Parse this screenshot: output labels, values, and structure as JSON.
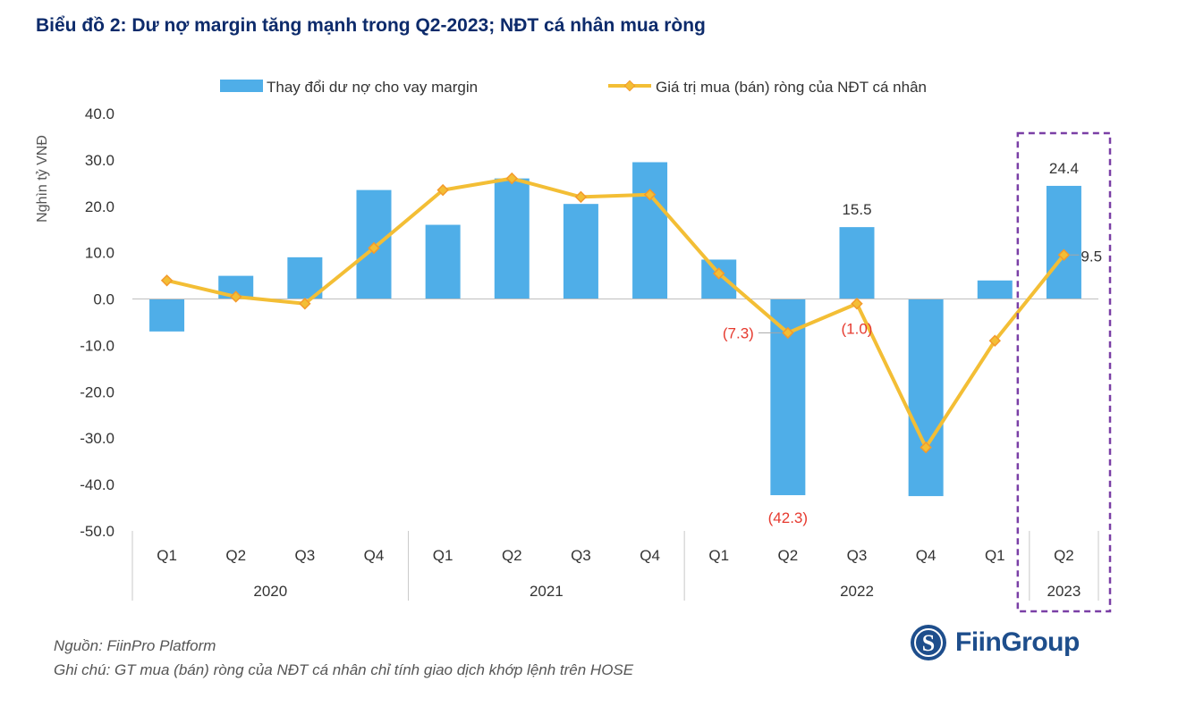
{
  "title": "Biểu đồ 2: Dư nợ margin tăng mạnh trong Q2-2023; NĐT cá nhân mua ròng",
  "source": "Nguồn: FiinPro Platform",
  "note": "Ghi chú: GT mua (bán) ròng của NĐT cá nhân chỉ tính giao dịch khớp lệnh trên HOSE",
  "logo": "FiinGroup",
  "colors": {
    "bar": "#4FAEE8",
    "line": "#F3BE35",
    "marker": "#F39A2C",
    "title": "#0D2B6B",
    "negative_label": "#E63A2F",
    "highlight": "#7A3FA6",
    "logo": "#1E4E8C"
  },
  "chart_data": {
    "type": "bar+line",
    "ylabel": "Nghìn tỷ VNĐ",
    "ylim": [
      -50,
      40
    ],
    "yticks": [
      "40.0",
      "30.0",
      "20.0",
      "10.0",
      "0.0",
      "-10.0",
      "-20.0",
      "-30.0",
      "-40.0",
      "-50.0"
    ],
    "categories": [
      "Q1",
      "Q2",
      "Q3",
      "Q4",
      "Q1",
      "Q2",
      "Q3",
      "Q4",
      "Q1",
      "Q2",
      "Q3",
      "Q4",
      "Q1",
      "Q2"
    ],
    "years": [
      {
        "label": "2020",
        "count": 4
      },
      {
        "label": "2021",
        "count": 4
      },
      {
        "label": "2022",
        "count": 5
      },
      {
        "label": "2023",
        "count": 1
      }
    ],
    "series": [
      {
        "name": "Thay đổi dư nợ cho vay margin",
        "type": "bar",
        "values": [
          -7.0,
          5.0,
          9.0,
          23.5,
          16.0,
          26.0,
          20.5,
          29.5,
          8.5,
          -42.3,
          15.5,
          -42.5,
          4.0,
          24.4
        ]
      },
      {
        "name": "Giá trị mua (bán) ròng của NĐT cá nhân",
        "type": "line",
        "values": [
          4.0,
          0.5,
          -1.0,
          11.0,
          23.5,
          26.0,
          22.0,
          22.5,
          5.5,
          -7.3,
          -1.0,
          -32.0,
          -9.0,
          9.5
        ]
      }
    ],
    "data_labels": [
      {
        "series": 0,
        "index": 10,
        "text": "15.5",
        "negative": false
      },
      {
        "series": 0,
        "index": 9,
        "text": "(42.3)",
        "negative": true
      },
      {
        "series": 1,
        "index": 9,
        "text": "(7.3)",
        "negative": true
      },
      {
        "series": 1,
        "index": 10,
        "text": "(1.0)",
        "negative": true
      },
      {
        "series": 0,
        "index": 13,
        "text": "24.4",
        "negative": false
      },
      {
        "series": 1,
        "index": 13,
        "text": "9.5",
        "negative": false
      }
    ],
    "highlight_index": 13
  }
}
